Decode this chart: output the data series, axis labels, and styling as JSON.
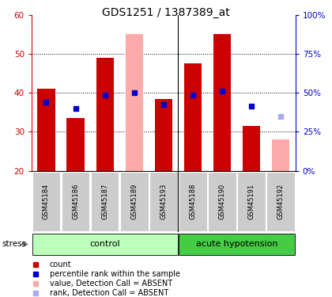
{
  "title": "GDS1251 / 1387389_at",
  "samples": [
    "GSM45184",
    "GSM45186",
    "GSM45187",
    "GSM45189",
    "GSM45193",
    "GSM45188",
    "GSM45190",
    "GSM45191",
    "GSM45192"
  ],
  "red_values": [
    41.0,
    33.5,
    49.0,
    null,
    38.5,
    47.5,
    55.0,
    31.5,
    null
  ],
  "pink_values": [
    null,
    null,
    null,
    55.0,
    null,
    null,
    null,
    null,
    28.0
  ],
  "blue_squares": [
    37.5,
    36.0,
    39.5,
    40.0,
    37.0,
    39.5,
    40.5,
    36.5,
    null
  ],
  "light_blue_squares": [
    null,
    null,
    null,
    null,
    null,
    null,
    null,
    null,
    34.0
  ],
  "ylim_left": [
    20,
    60
  ],
  "ylim_right": [
    0,
    100
  ],
  "yticks_left": [
    20,
    30,
    40,
    50,
    60
  ],
  "ytick_labels_right": [
    "0%",
    "25%",
    "50%",
    "75%",
    "100%"
  ],
  "left_axis_color": "#cc0000",
  "right_axis_color": "#0000cc",
  "bar_color_red": "#cc0000",
  "bar_color_pink": "#ffaaaa",
  "square_color_blue": "#0000cc",
  "square_color_light_blue": "#aaaaee",
  "group_control_color": "#bbffbb",
  "group_acute_color": "#44cc44",
  "sample_bg_color": "#cccccc",
  "baseline": 20,
  "group_label_control": "control",
  "group_label_acute": "acute hypotension",
  "stress_label": "stress",
  "legend_items": [
    "count",
    "percentile rank within the sample",
    "value, Detection Call = ABSENT",
    "rank, Detection Call = ABSENT"
  ],
  "legend_colors": [
    "#cc0000",
    "#0000cc",
    "#ffaaaa",
    "#aaaaee"
  ]
}
